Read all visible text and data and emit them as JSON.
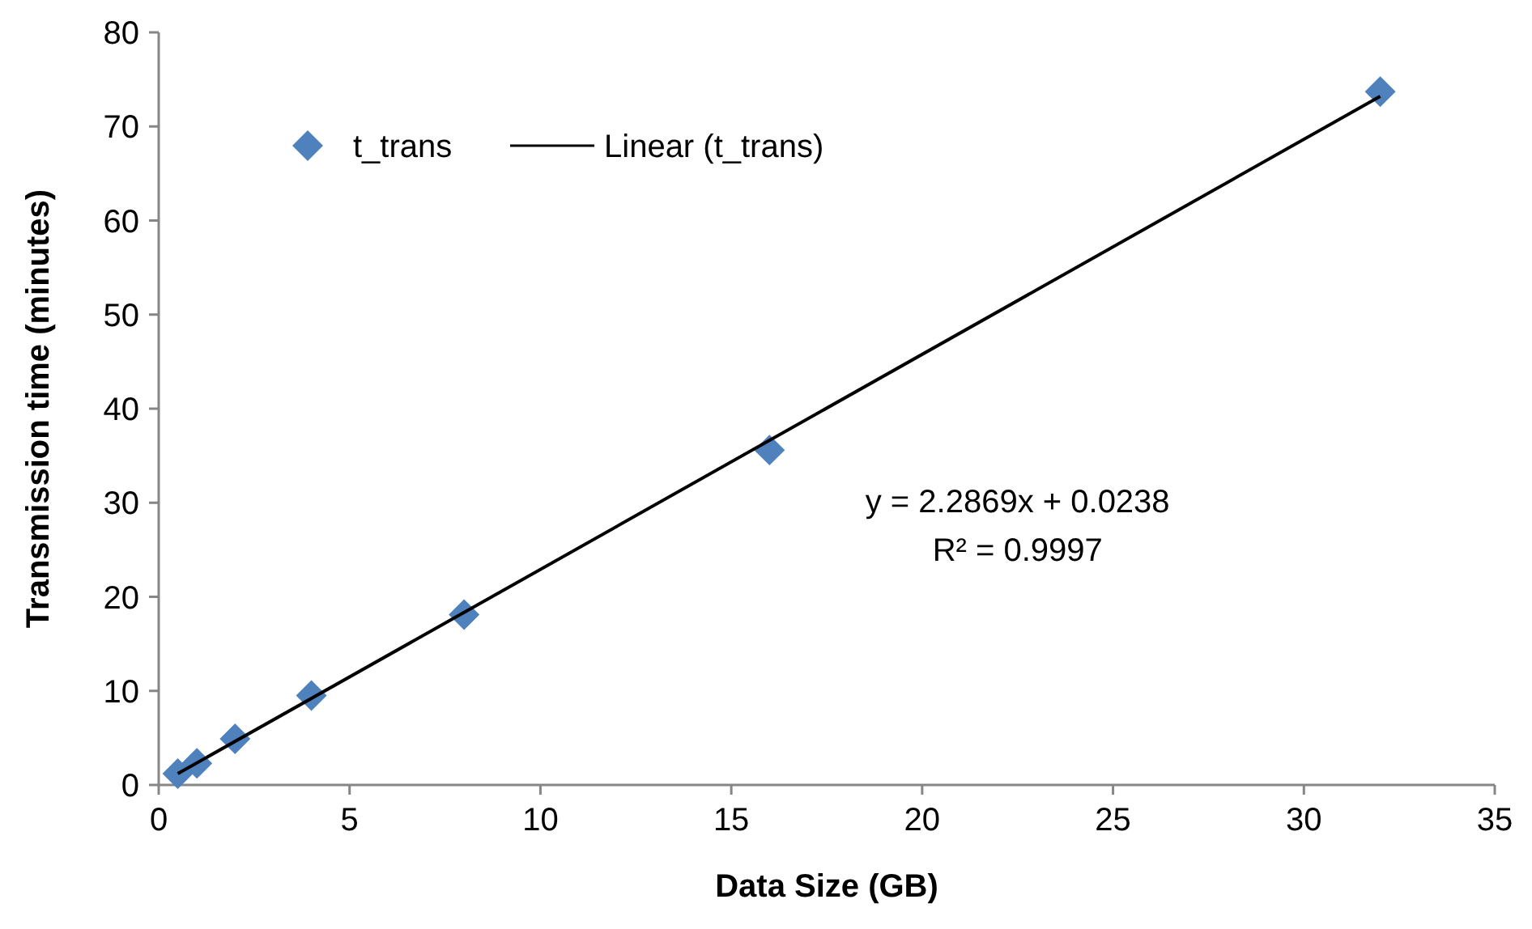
{
  "chart_data": {
    "type": "scatter",
    "xlabel": "Data Size (GB)",
    "ylabel": "Transmission time (minutes)",
    "xlim": [
      0,
      35
    ],
    "xticks": [
      0,
      5,
      10,
      15,
      20,
      25,
      30,
      35
    ],
    "ylim": [
      0,
      80
    ],
    "yticks": [
      0,
      10,
      20,
      30,
      40,
      50,
      60,
      70,
      80
    ],
    "grid": false,
    "legend": "top left",
    "series": [
      {
        "name": "t_trans",
        "marker": "diamond",
        "color": "#4f81bd",
        "x": [
          0.5,
          1,
          2,
          4,
          8,
          16,
          32
        ],
        "values": [
          1.2,
          2.3,
          4.9,
          9.5,
          18.1,
          35.6,
          73.7
        ]
      },
      {
        "name": "Linear (t_trans)",
        "type": "line",
        "color": "#000000",
        "x": [
          0.5,
          32
        ],
        "values": [
          1.2,
          73.2
        ],
        "line_style": "solid",
        "marker": "none"
      }
    ],
    "annotations": [
      "y = 2.2869x + 0.0238",
      "R² = 0.9997"
    ]
  }
}
